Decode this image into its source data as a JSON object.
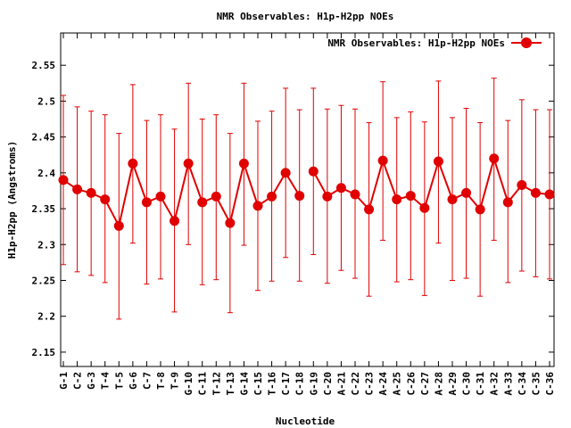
{
  "chart_data": {
    "type": "line",
    "title": "NMR Observables: H1p-H2pp NOEs",
    "xlabel": "Nucleotide",
    "ylabel": "H1p-H2pp (Angstroms)",
    "ylim": [
      2.13,
      2.595
    ],
    "yticks": [
      2.15,
      2.2,
      2.25,
      2.3,
      2.35,
      2.4,
      2.45,
      2.5,
      2.55
    ],
    "ytick_labels": [
      "2.15",
      "2.2",
      "2.25",
      "2.3",
      "2.35",
      "2.4",
      "2.45",
      "2.5",
      "2.55"
    ],
    "grid": false,
    "legend_position": "top-right",
    "color": "#e00000",
    "categories": [
      "G-1",
      "C-2",
      "G-3",
      "T-4",
      "T-5",
      "G-6",
      "C-7",
      "T-8",
      "T-9",
      "G-10",
      "C-11",
      "T-12",
      "T-13",
      "G-14",
      "C-15",
      "T-16",
      "C-17",
      "C-18",
      "G-19",
      "C-20",
      "A-21",
      "C-22",
      "C-23",
      "A-24",
      "A-25",
      "C-26",
      "C-27",
      "A-28",
      "A-29",
      "C-30",
      "C-31",
      "A-32",
      "A-33",
      "C-34",
      "C-35",
      "C-36"
    ],
    "series": [
      {
        "name": "NMR Observables: H1p-H2pp NOEs",
        "segments": [
          [
            0,
            17
          ],
          [
            18,
            35
          ]
        ],
        "values": [
          2.39,
          2.377,
          2.372,
          2.363,
          2.326,
          2.413,
          2.359,
          2.367,
          2.333,
          2.413,
          2.359,
          2.367,
          2.33,
          2.413,
          2.354,
          2.367,
          2.4,
          2.368,
          2.402,
          2.367,
          2.379,
          2.37,
          2.349,
          2.417,
          2.363,
          2.368,
          2.351,
          2.416,
          2.363,
          2.372,
          2.349,
          2.42,
          2.359,
          2.383,
          2.372,
          2.37
        ],
        "err_high": [
          2.508,
          2.492,
          2.486,
          2.481,
          2.455,
          2.523,
          2.473,
          2.481,
          2.461,
          2.525,
          2.475,
          2.481,
          2.455,
          2.525,
          2.472,
          2.486,
          2.518,
          2.488,
          2.518,
          2.489,
          2.494,
          2.489,
          2.47,
          2.527,
          2.477,
          2.485,
          2.471,
          2.528,
          2.477,
          2.49,
          2.47,
          2.532,
          2.473,
          2.502,
          2.488,
          2.488
        ],
        "err_low": [
          2.272,
          2.262,
          2.257,
          2.247,
          2.196,
          2.302,
          2.245,
          2.252,
          2.206,
          2.3,
          2.244,
          2.251,
          2.205,
          2.299,
          2.236,
          2.249,
          2.282,
          2.249,
          2.286,
          2.246,
          2.264,
          2.253,
          2.228,
          2.306,
          2.248,
          2.251,
          2.229,
          2.302,
          2.25,
          2.253,
          2.228,
          2.306,
          2.247,
          2.263,
          2.255,
          2.252
        ]
      }
    ]
  }
}
